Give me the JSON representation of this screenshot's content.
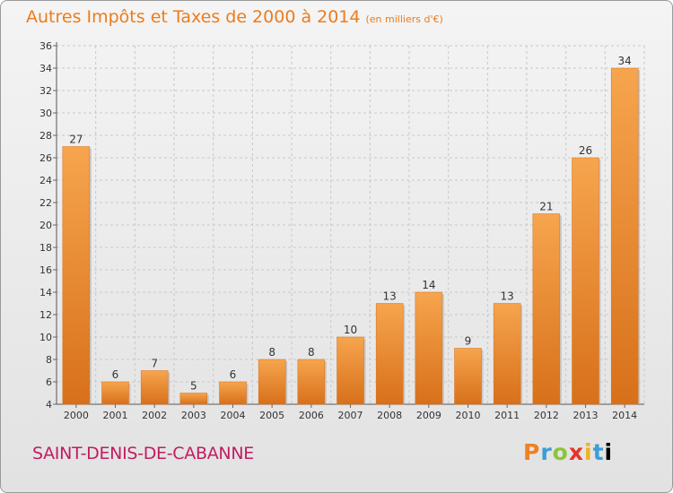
{
  "chart_data": {
    "type": "bar",
    "title": "Autres Impôts et Taxes de 2000 à 2014",
    "unit_label": "(en milliers d'€)",
    "categories": [
      "2000",
      "2001",
      "2002",
      "2003",
      "2004",
      "2005",
      "2006",
      "2007",
      "2008",
      "2009",
      "2010",
      "2011",
      "2012",
      "2013",
      "2014"
    ],
    "values": [
      27,
      6,
      7,
      5,
      6,
      8,
      8,
      10,
      13,
      14,
      9,
      13,
      21,
      26,
      34
    ],
    "ylim": [
      4,
      36
    ],
    "yticks": [
      4,
      6,
      8,
      10,
      12,
      14,
      16,
      18,
      20,
      22,
      24,
      26,
      28,
      30,
      32,
      34,
      36
    ],
    "grid": true,
    "bar_color": "#f0963c"
  },
  "commune": "SAINT-DENIS-DE-CABANNE",
  "logo": [
    "P",
    "r",
    "o",
    "x",
    "i",
    "t",
    "i"
  ]
}
